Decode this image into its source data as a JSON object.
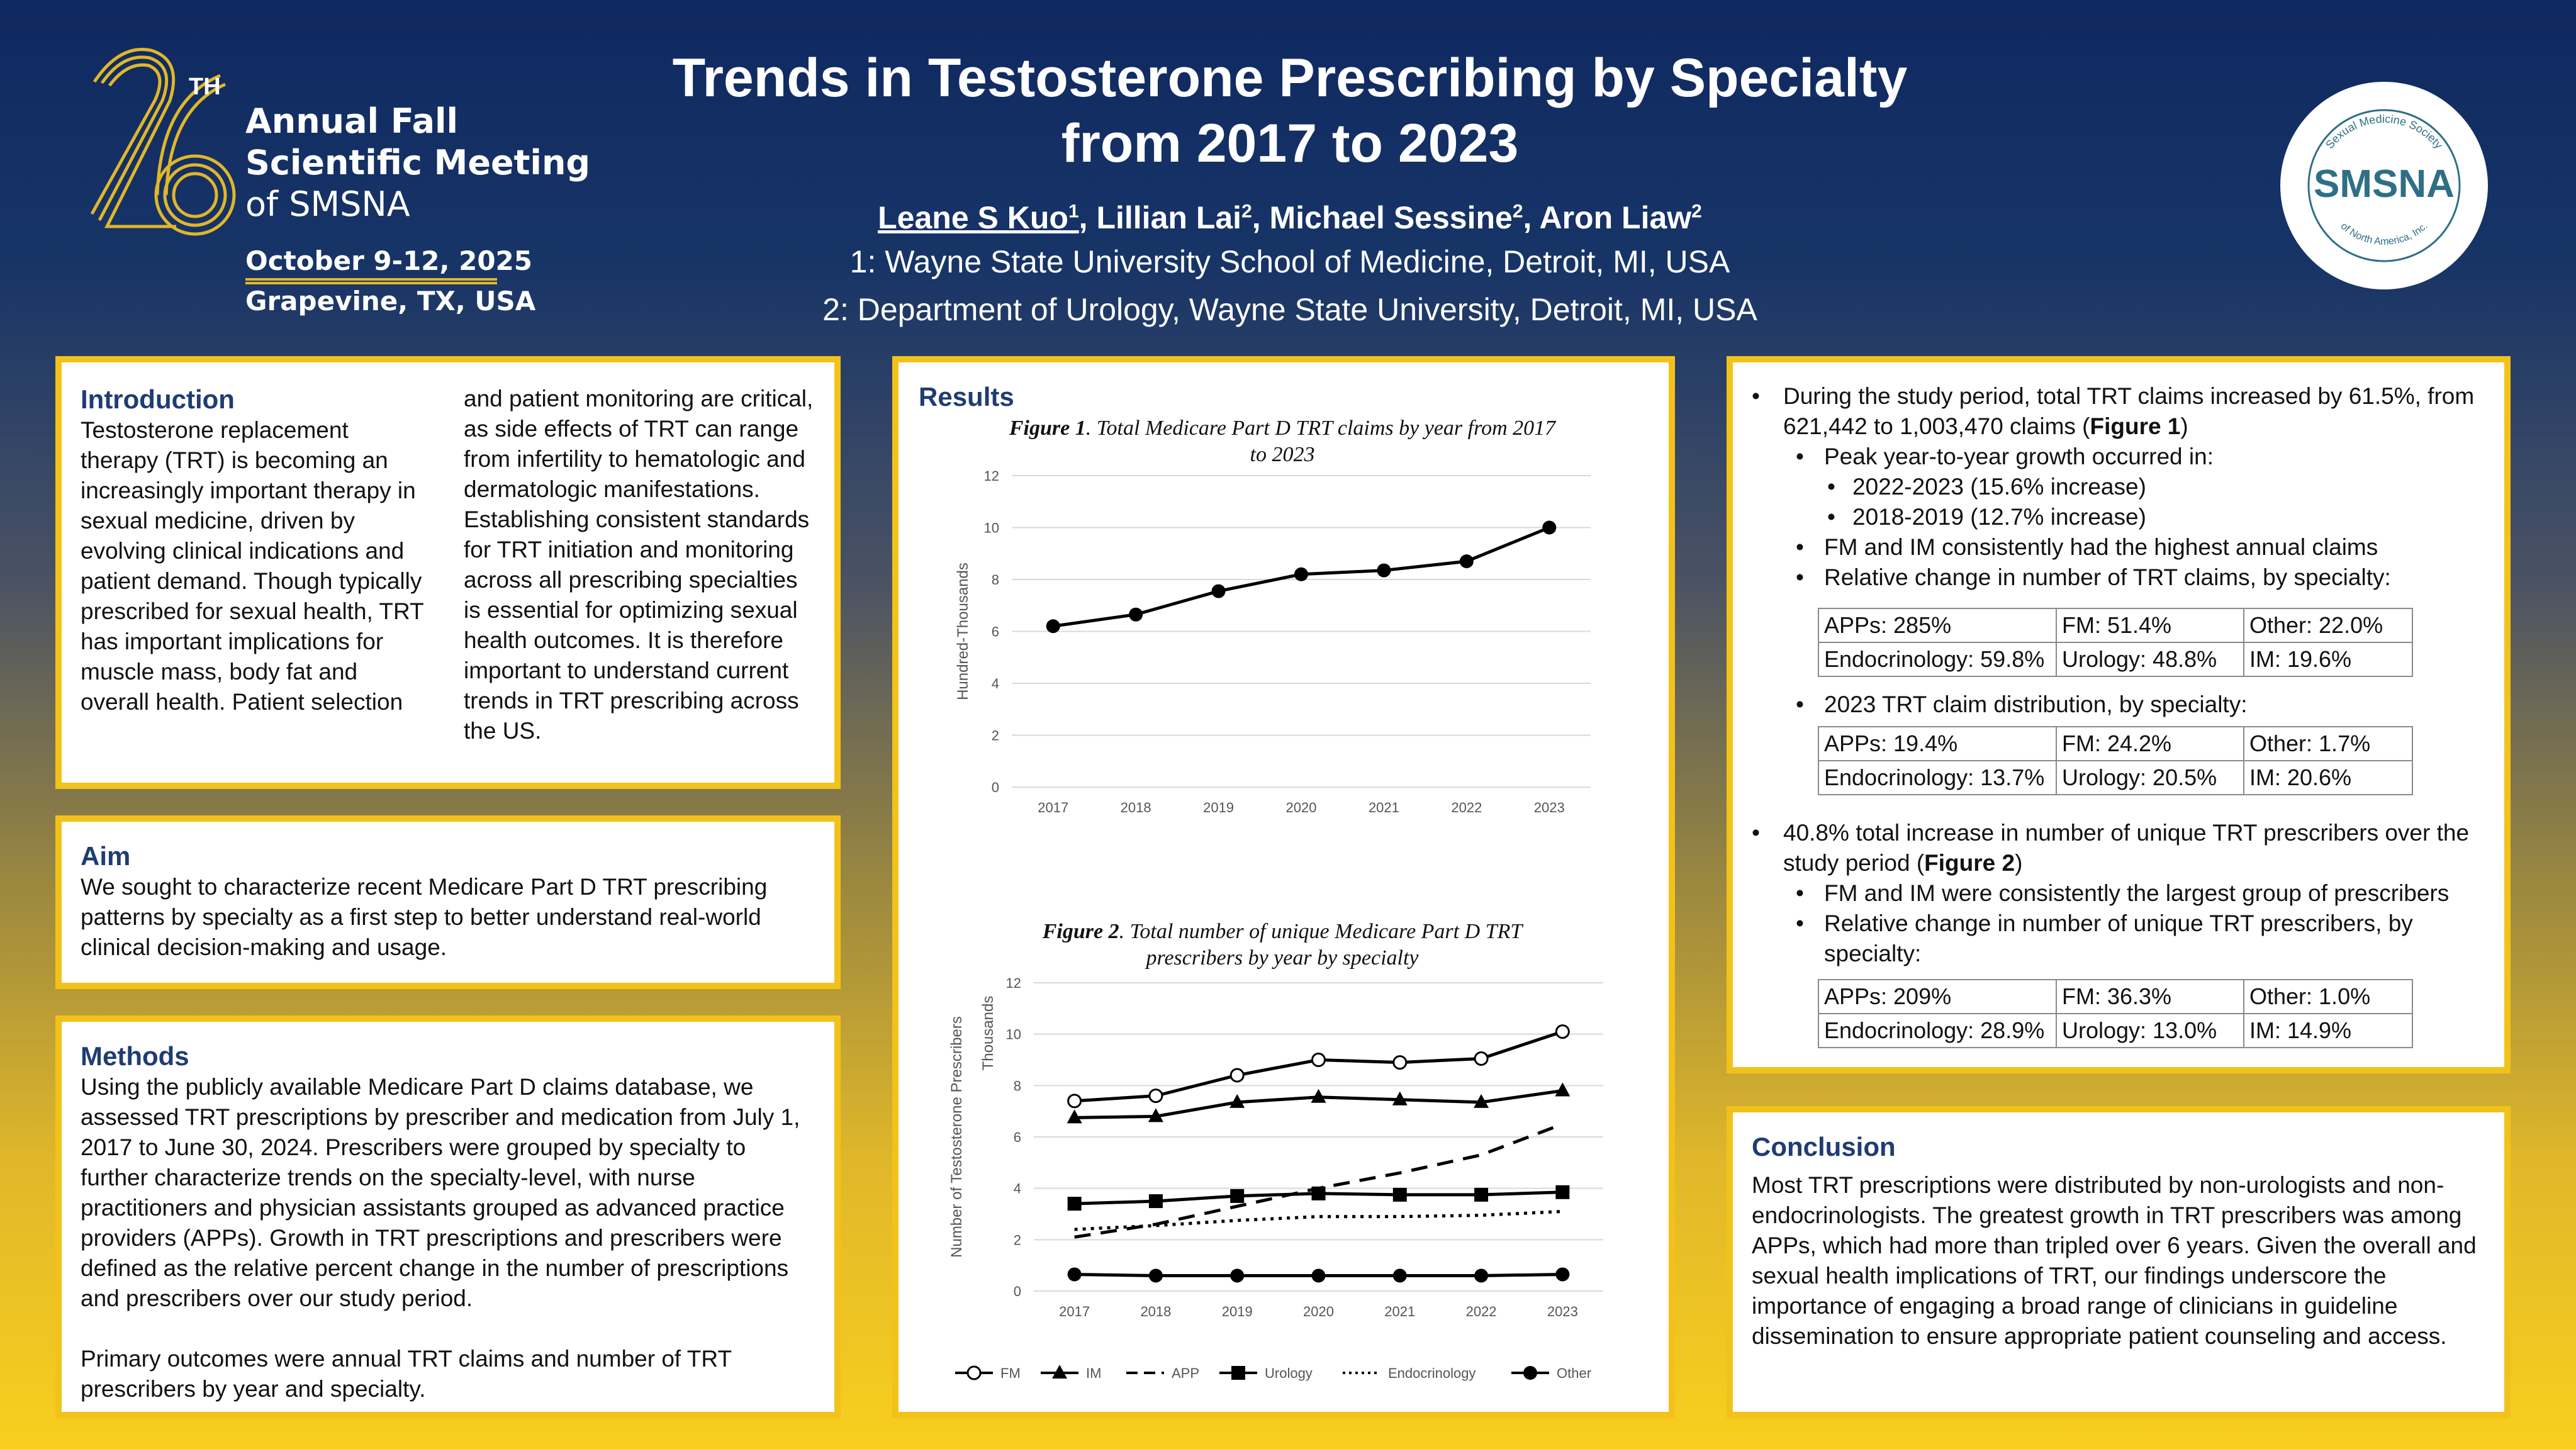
{
  "header": {
    "logo_number": "26",
    "logo_superscript": "TH",
    "meeting_line1": "Annual Fall",
    "meeting_line2": "Scientific Meeting",
    "meeting_line3": "of SMSNA",
    "meeting_date": "October 9-12, 2025",
    "meeting_location": "Grapevine, TX, USA",
    "title_line1": "Trends in Testosterone Prescribing by Specialty",
    "title_line2": "from 2017 to 2023",
    "authors": [
      {
        "name": "Leane S Kuo",
        "sup": "1"
      },
      {
        "name": "Lillian Lai",
        "sup": "2"
      },
      {
        "name": "Michael Sessine",
        "sup": "2"
      },
      {
        "name": "Aron Liaw",
        "sup": "2"
      }
    ],
    "affiliation1": "1: Wayne State University School of Medicine, Detroit, MI, USA",
    "affiliation2": "2: Department of Urology, Wayne State University, Detroit, MI, USA",
    "smsna_logo_text": "SMSNA",
    "smsna_ring_top": "Sexual Medicine Society",
    "smsna_ring_bottom": "of North America, Inc."
  },
  "introduction": {
    "heading": "Introduction",
    "text": "Testosterone replacement therapy (TRT) is becoming an increasingly important therapy in sexual medicine, driven by evolving clinical indications and patient demand. Though typically prescribed for sexual health, TRT has important implications for muscle mass, body fat and overall health. Patient selection and patient monitoring are critical, as side effects of TRT can range from infertility to hematologic and dermatologic manifestations. Establishing consistent standards for TRT initiation and monitoring across all prescribing specialties is essential for optimizing sexual health outcomes. It is therefore important to understand current trends in TRT prescribing across the US."
  },
  "aim": {
    "heading": "Aim",
    "text": "We sought to characterize recent Medicare Part D TRT prescribing patterns by specialty as a first step to better understand real-world clinical decision-making and usage."
  },
  "methods": {
    "heading": "Methods",
    "text1": "Using the publicly available Medicare Part D claims database, we assessed TRT prescriptions by prescriber and medication from July 1, 2017 to June 30, 2024. Prescribers were grouped by specialty to further characterize trends on the specialty-level, with nurse practitioners and physician assistants grouped as advanced practice providers (APPs). Growth in TRT prescriptions and prescribers were defined as the relative percent change in the number of prescriptions and prescribers over our study period.",
    "text2": "Primary outcomes were annual TRT claims and number of TRT prescribers by year and specialty."
  },
  "results": {
    "heading": "Results",
    "fig1_label": "Figure 1",
    "fig1_caption": ". Total Medicare Part D TRT claims by year from 2017 to 2023",
    "fig2_label": "Figure 2",
    "fig2_caption": ". Total number of unique Medicare Part D TRT prescribers by year by specialty"
  },
  "chart_data": [
    {
      "type": "line",
      "title": "Figure 1. Total Medicare Part D TRT claims by year from 2017 to 2023",
      "xlabel": "",
      "ylabel": "Hundred-Thousands",
      "ylim": [
        0,
        12
      ],
      "yticks": [
        "0",
        "2",
        "4",
        "6",
        "8",
        "10",
        "12"
      ],
      "x": [
        "2017",
        "2018",
        "2019",
        "2020",
        "2021",
        "2022",
        "2023"
      ],
      "series": [
        {
          "name": "Total claims",
          "values": [
            6.2,
            6.65,
            7.55,
            8.2,
            8.35,
            8.7,
            10.0
          ]
        }
      ]
    },
    {
      "type": "line",
      "title": "Figure 2. Total number of unique Medicare Part D TRT prescribers by year by specialty",
      "xlabel": "",
      "ylabel": "Number of Testosterone Prescribers",
      "ylabel2": "Thousands",
      "ylim": [
        0,
        12
      ],
      "yticks": [
        "0",
        "2",
        "4",
        "6",
        "8",
        "10",
        "12"
      ],
      "x": [
        "2017",
        "2018",
        "2019",
        "2020",
        "2021",
        "2022",
        "2023"
      ],
      "legend_position": "bottom",
      "series": [
        {
          "name": "FM",
          "values": [
            7.4,
            7.6,
            8.4,
            9.0,
            8.9,
            9.05,
            10.1
          ],
          "style": "open-circle"
        },
        {
          "name": "IM",
          "values": [
            6.75,
            6.8,
            7.35,
            7.55,
            7.45,
            7.35,
            7.8
          ],
          "style": "triangle"
        },
        {
          "name": "APP",
          "values": [
            2.1,
            2.6,
            3.3,
            4.0,
            4.6,
            5.3,
            6.5
          ],
          "style": "dashed"
        },
        {
          "name": "Urology",
          "values": [
            3.4,
            3.5,
            3.7,
            3.8,
            3.75,
            3.75,
            3.85
          ],
          "style": "square"
        },
        {
          "name": "Endocrinology",
          "values": [
            2.4,
            2.55,
            2.75,
            2.9,
            2.9,
            2.95,
            3.1
          ],
          "style": "dotted"
        },
        {
          "name": "Other",
          "values": [
            0.65,
            0.6,
            0.6,
            0.6,
            0.6,
            0.6,
            0.65
          ],
          "style": "filled-circle"
        }
      ]
    }
  ],
  "findings": {
    "b1": "During the study period, total TRT claims increased by 61.5%, from 621,442 to 1,003,470 claims (",
    "b1_bold": "Figure 1",
    "b1_end": ")",
    "b1_sub1": "Peak year-to-year growth occurred in:",
    "b1_sub1a": "2022-2023 (15.6% increase)",
    "b1_sub1b": "2018-2019 (12.7% increase)",
    "b1_sub2": "FM and IM consistently had the highest annual claims",
    "b1_sub3": "Relative change in number of TRT claims, by specialty:",
    "table1": [
      [
        "APPs: 285%",
        "FM: 51.4%",
        "Other: 22.0%"
      ],
      [
        "Endocrinology: 59.8%",
        "Urology: 48.8%",
        "IM: 19.6%"
      ]
    ],
    "b1_sub4": "2023 TRT claim distribution, by specialty:",
    "table2": [
      [
        "APPs: 19.4%",
        "FM: 24.2%",
        "Other: 1.7%"
      ],
      [
        "Endocrinology: 13.7%",
        "Urology: 20.5%",
        "IM: 20.6%"
      ]
    ],
    "b2": "40.8% total increase in number of unique TRT prescribers over the study period (",
    "b2_bold": "Figure 2",
    "b2_end": ")",
    "b2_sub1": "FM and IM were consistently the largest group of prescribers",
    "b2_sub2": "Relative change in number of unique TRT prescribers, by specialty:",
    "table3": [
      [
        "APPs: 209%",
        "FM: 36.3%",
        "Other: 1.0%"
      ],
      [
        "Endocrinology: 28.9%",
        "Urology: 13.0%",
        "IM: 14.9%"
      ]
    ]
  },
  "conclusion": {
    "heading": "Conclusion",
    "text": "Most TRT prescriptions were distributed by non-urologists and non-endocrinologists. The greatest growth in TRT prescribers was among APPs, which had more than tripled over 6 years. Given the overall and sexual health implications of TRT, our findings underscore the importance of engaging a broad range of clinicians in guideline dissemination to ensure appropriate patient counseling and access."
  },
  "colors": {
    "navy": "#0f2960",
    "gold": "#f2c21a",
    "heading": "#1f3c73",
    "teal": "#2f6f86"
  }
}
